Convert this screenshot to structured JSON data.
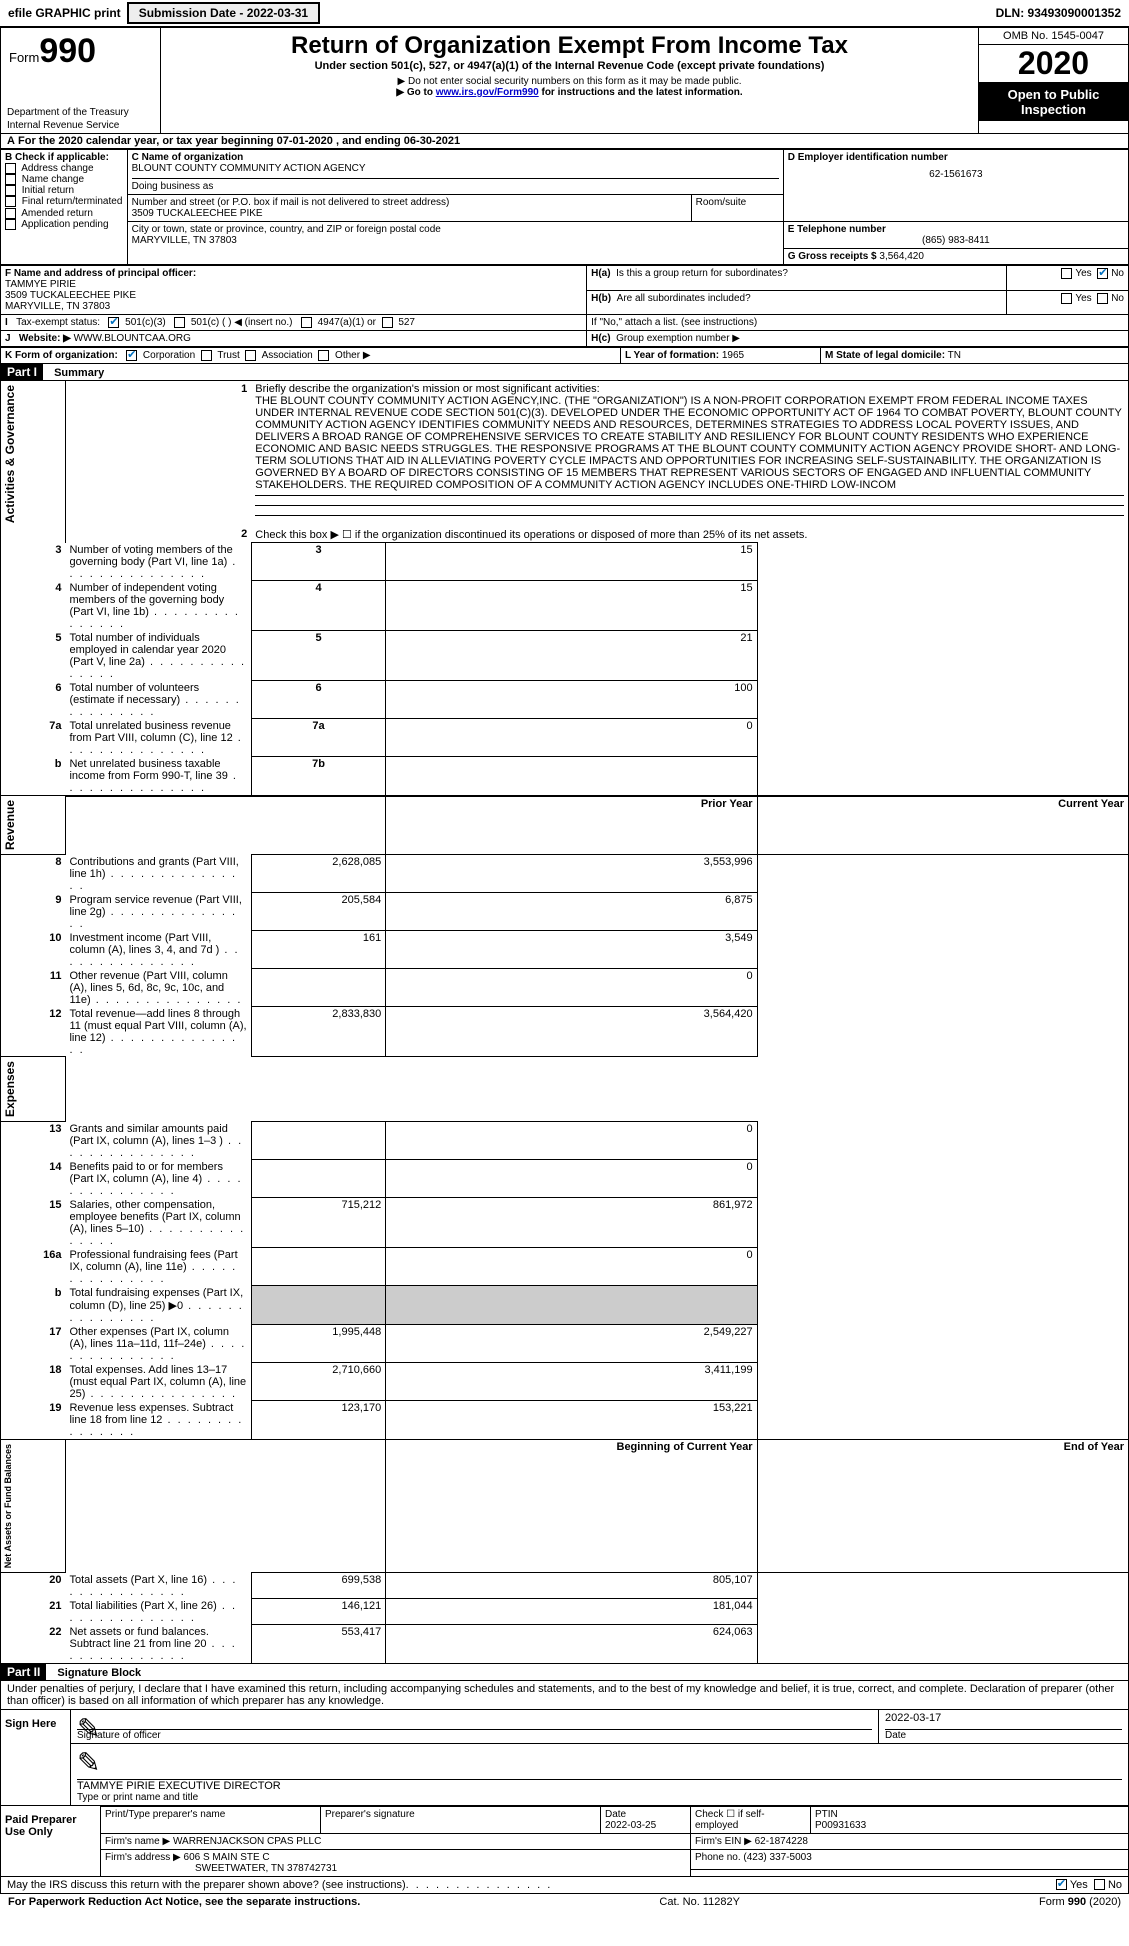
{
  "top": {
    "efile": "efile GRAPHIC print",
    "submission_label": "Submission Date - ",
    "submission_date": "2022-03-31",
    "dln": "DLN: 93493090001352"
  },
  "header": {
    "form_prefix": "Form",
    "form_no": "990",
    "dept": "Department of the Treasury",
    "irs": "Internal Revenue Service",
    "title": "Return of Organization Exempt From Income Tax",
    "subtitle": "Under section 501(c), 527, or 4947(a)(1) of the Internal Revenue Code (except private foundations)",
    "arrow1": "▶ Do not enter social security numbers on this form as it may be made public.",
    "arrow2_pre": "▶ Go to ",
    "arrow2_link": "www.irs.gov/Form990",
    "arrow2_post": " for instructions and the latest information.",
    "omb": "OMB No. 1545-0047",
    "year": "2020",
    "open": "Open to Public Inspection"
  },
  "a_line": {
    "text_pre": "For the 2020 calendar year, or tax year beginning ",
    "begin": "07-01-2020",
    "mid": "    , and ending ",
    "end": "06-30-2021"
  },
  "b": {
    "label": "B Check if applicable:",
    "items": [
      "Address change",
      "Name change",
      "Initial return",
      "Final return/terminated",
      "Amended return",
      "Application pending"
    ]
  },
  "c": {
    "label": "C Name of organization",
    "name": "BLOUNT COUNTY COMMUNITY ACTION AGENCY",
    "dba_label": "Doing business as",
    "street_label": "Number and street (or P.O. box if mail is not delivered to street address)",
    "room_label": "Room/suite",
    "street": "3509 TUCKALEECHEE PIKE",
    "city_label": "City or town, state or province, country, and ZIP or foreign postal code",
    "city": "MARYVILLE, TN  37803"
  },
  "d": {
    "label": "D Employer identification number",
    "value": "62-1561673"
  },
  "e": {
    "label": "E Telephone number",
    "value": "(865) 983-8411"
  },
  "g": {
    "label": "G Gross receipts $",
    "value": "3,564,420"
  },
  "f": {
    "label": "F  Name and address of principal officer:",
    "name": "TAMMYE PIRIE",
    "addr1": "3509 TUCKALEECHEE PIKE",
    "addr2": "MARYVILLE, TN  37803"
  },
  "h": {
    "a_label": "Is this a group return for subordinates?",
    "a_prefix": "H(a)",
    "b_label": "Are all subordinates included?",
    "b_prefix": "H(b)",
    "note": "If \"No,\" attach a list. (see instructions)",
    "c_label": "Group exemption number ▶",
    "c_prefix": "H(c)",
    "yes": "Yes",
    "no": "No"
  },
  "i": {
    "label": "Tax-exempt status:",
    "opt1": "501(c)(3)",
    "opt2": "501(c) (  ) ◀ (insert no.)",
    "opt3": "4947(a)(1) or",
    "opt4": "527"
  },
  "j": {
    "label": "Website: ▶",
    "value": "WWW.BLOUNTCAA.ORG"
  },
  "k": {
    "label": "K Form of organization:",
    "corp": "Corporation",
    "trust": "Trust",
    "assoc": "Association",
    "other": "Other ▶"
  },
  "l": {
    "label": "L Year of formation:",
    "value": "1965"
  },
  "m": {
    "label": "M State of legal domicile:",
    "value": "TN"
  },
  "part1": {
    "label": "Part I",
    "title": "Summary",
    "vtext1": "Activities & Governance",
    "vtext2": "Revenue",
    "vtext3": "Expenses",
    "vtext4": "Net Assets or Fund Balances",
    "q1_label": "Briefly describe the organization's mission or most significant activities:",
    "q1_text": "THE BLOUNT COUNTY COMMUNITY ACTION AGENCY,INC. (THE \"ORGANIZATION\") IS A NON-PROFIT CORPORATION EXEMPT FROM FEDERAL INCOME TAXES UNDER INTERNAL REVENUE CODE SECTION 501(C)(3). DEVELOPED UNDER THE ECONOMIC OPPORTUNITY ACT OF 1964 TO COMBAT POVERTY, BLOUNT COUNTY COMMUNITY ACTION AGENCY IDENTIFIES COMMUNITY NEEDS AND RESOURCES, DETERMINES STRATEGIES TO ADDRESS LOCAL POVERTY ISSUES, AND DELIVERS A BROAD RANGE OF COMPREHENSIVE SERVICES TO CREATE STABILITY AND RESILIENCY FOR BLOUNT COUNTY RESIDENTS WHO EXPERIENCE ECONOMIC AND BASIC NEEDS STRUGGLES. THE RESPONSIVE PROGRAMS AT THE BLOUNT COUNTY COMMUNITY ACTION AGENCY PROVIDE SHORT- AND LONG-TERM SOLUTIONS THAT AID IN ALLEVIATING POVERTY CYCLE IMPACTS AND OPPORTUNITIES FOR INCREASING SELF-SUSTAINABILITY. THE ORGANIZATION IS GOVERNED BY A BOARD OF DIRECTORS CONSISTING OF 15 MEMBERS THAT REPRESENT VARIOUS SECTORS OF ENGAGED AND INFLUENTIAL COMMUNITY STAKEHOLDERS. THE REQUIRED COMPOSITION OF A COMMUNITY ACTION AGENCY INCLUDES ONE-THIRD LOW-INCOM",
    "q2": "Check this box ▶ ☐  if the organization discontinued its operations or disposed of more than 25% of its net assets.",
    "rows_gov": [
      {
        "n": "3",
        "text": "Number of voting members of the governing body (Part VI, line 1a)",
        "box": "3",
        "val": "15"
      },
      {
        "n": "4",
        "text": "Number of independent voting members of the governing body (Part VI, line 1b)",
        "box": "4",
        "val": "15"
      },
      {
        "n": "5",
        "text": "Total number of individuals employed in calendar year 2020 (Part V, line 2a)",
        "box": "5",
        "val": "21"
      },
      {
        "n": "6",
        "text": "Total number of volunteers (estimate if necessary)",
        "box": "6",
        "val": "100"
      },
      {
        "n": "7a",
        "text": "Total unrelated business revenue from Part VIII, column (C), line 12",
        "box": "7a",
        "val": "0"
      },
      {
        "n": "b",
        "text": "Net unrelated business taxable income from Form 990-T, line 39",
        "box": "7b",
        "val": ""
      }
    ],
    "col_prior": "Prior Year",
    "col_current": "Current Year",
    "rows_rev": [
      {
        "n": "8",
        "text": "Contributions and grants (Part VIII, line 1h)",
        "p": "2,628,085",
        "c": "3,553,996"
      },
      {
        "n": "9",
        "text": "Program service revenue (Part VIII, line 2g)",
        "p": "205,584",
        "c": "6,875"
      },
      {
        "n": "10",
        "text": "Investment income (Part VIII, column (A), lines 3, 4, and 7d )",
        "p": "161",
        "c": "3,549"
      },
      {
        "n": "11",
        "text": "Other revenue (Part VIII, column (A), lines 5, 6d, 8c, 9c, 10c, and 11e)",
        "p": "",
        "c": "0"
      },
      {
        "n": "12",
        "text": "Total revenue—add lines 8 through 11 (must equal Part VIII, column (A), line 12)",
        "p": "2,833,830",
        "c": "3,564,420"
      }
    ],
    "rows_exp": [
      {
        "n": "13",
        "text": "Grants and similar amounts paid (Part IX, column (A), lines 1–3 )",
        "p": "",
        "c": "0"
      },
      {
        "n": "14",
        "text": "Benefits paid to or for members (Part IX, column (A), line 4)",
        "p": "",
        "c": "0"
      },
      {
        "n": "15",
        "text": "Salaries, other compensation, employee benefits (Part IX, column (A), lines 5–10)",
        "p": "715,212",
        "c": "861,972"
      },
      {
        "n": "16a",
        "text": "Professional fundraising fees (Part IX, column (A), line 11e)",
        "p": "",
        "c": "0"
      },
      {
        "n": "b",
        "text": "Total fundraising expenses (Part IX, column (D), line 25) ▶0",
        "p": "GREY",
        "c": "GREY"
      },
      {
        "n": "17",
        "text": "Other expenses (Part IX, column (A), lines 11a–11d, 11f–24e)",
        "p": "1,995,448",
        "c": "2,549,227"
      },
      {
        "n": "18",
        "text": "Total expenses. Add lines 13–17 (must equal Part IX, column (A), line 25)",
        "p": "2,710,660",
        "c": "3,411,199"
      },
      {
        "n": "19",
        "text": "Revenue less expenses. Subtract line 18 from line 12",
        "p": "123,170",
        "c": "153,221"
      }
    ],
    "col_begin": "Beginning of Current Year",
    "col_end": "End of Year",
    "rows_net": [
      {
        "n": "20",
        "text": "Total assets (Part X, line 16)",
        "p": "699,538",
        "c": "805,107"
      },
      {
        "n": "21",
        "text": "Total liabilities (Part X, line 26)",
        "p": "146,121",
        "c": "181,044"
      },
      {
        "n": "22",
        "text": "Net assets or fund balances. Subtract line 21 from line 20",
        "p": "553,417",
        "c": "624,063"
      }
    ]
  },
  "part2": {
    "label": "Part II",
    "title": "Signature Block",
    "perjury": "Under penalties of perjury, I declare that I have examined this return, including accompanying schedules and statements, and to the best of my knowledge and belief, it is true, correct, and complete. Declaration of preparer (other than officer) is based on all information of which preparer has any knowledge.",
    "sign_here": "Sign Here",
    "sig_officer": "Signature of officer",
    "sig_date": "2022-03-17",
    "date_label": "Date",
    "name_title": "TAMMYE PIRIE  EXECUTIVE DIRECTOR",
    "type_label": "Type or print name and title",
    "paid": "Paid Preparer Use Only",
    "print_label": "Print/Type preparer's name",
    "prep_sig_label": "Preparer's signature",
    "prep_date_label": "Date",
    "prep_date": "2022-03-25",
    "check_self": "Check ☐ if self-employed",
    "ptin_label": "PTIN",
    "ptin": "P00931633",
    "firm_name_label": "Firm's name      ▶",
    "firm_name": "WARRENJACKSON CPAS PLLC",
    "firm_ein_label": "Firm's EIN ▶",
    "firm_ein": "62-1874228",
    "firm_addr_label": "Firm's address ▶",
    "firm_addr1": "606 S MAIN STE C",
    "firm_addr2": "SWEETWATER, TN  378742731",
    "phone_label": "Phone no.",
    "phone": "(423) 337-5003",
    "discuss": "May the IRS discuss this return with the preparer shown above? (see instructions)"
  },
  "footer": {
    "left": "For Paperwork Reduction Act Notice, see the separate instructions.",
    "mid": "Cat. No. 11282Y",
    "right": "Form 990 (2020)"
  }
}
